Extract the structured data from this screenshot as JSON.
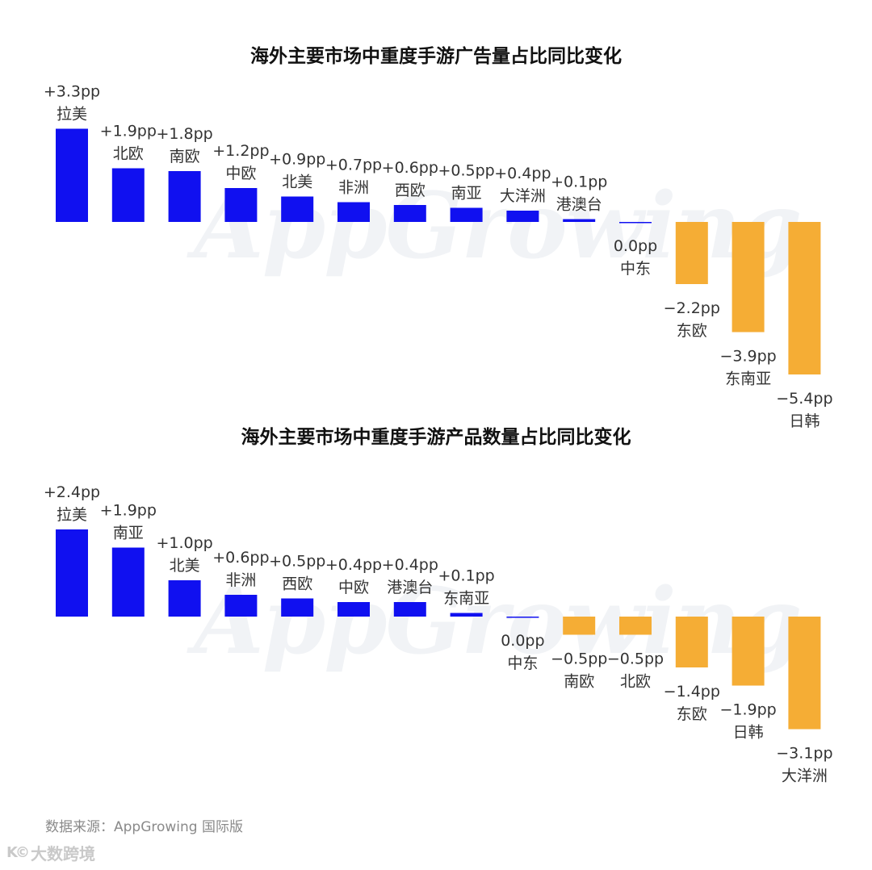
{
  "watermark": "AppGrowing",
  "source": "数据来源：AppGrowing 国际版",
  "brand": {
    "logo": "K©",
    "name": "大数跨境"
  },
  "colors": {
    "positive": "#1010f0",
    "negative": "#f5ad35",
    "zero": "#1010f0"
  },
  "chart_data": [
    {
      "type": "bar",
      "title": "海外主要市场中重度手游广告量占比同比变化",
      "unit": "pp",
      "categories": [
        "拉美",
        "北欧",
        "南欧",
        "中欧",
        "北美",
        "非洲",
        "西欧",
        "南亚",
        "大洋洲",
        "港澳台",
        "中东",
        "东欧",
        "东南亚",
        "日韩"
      ],
      "values": [
        3.3,
        1.9,
        1.8,
        1.2,
        0.9,
        0.7,
        0.6,
        0.5,
        0.4,
        0.1,
        0.0,
        -2.2,
        -3.9,
        -5.4
      ],
      "value_labels": [
        "+3.3pp",
        "+1.9pp",
        "+1.8pp",
        "+1.2pp",
        "+0.9pp",
        "+0.7pp",
        "+0.6pp",
        "+0.5pp",
        "+0.4pp",
        "+0.1pp",
        "0.0pp",
        "−2.2pp",
        "−3.9pp",
        "−5.4pp"
      ]
    },
    {
      "type": "bar",
      "title": "海外主要市场中重度手游产品数量占比同比变化",
      "unit": "pp",
      "categories": [
        "拉美",
        "南亚",
        "北美",
        "非洲",
        "西欧",
        "中欧",
        "港澳台",
        "东南亚",
        "中东",
        "南欧",
        "北欧",
        "东欧",
        "日韩",
        "大洋洲"
      ],
      "values": [
        2.4,
        1.9,
        1.0,
        0.6,
        0.5,
        0.4,
        0.4,
        0.1,
        0.0,
        -0.5,
        -0.5,
        -1.4,
        -1.9,
        -3.1
      ],
      "value_labels": [
        "+2.4pp",
        "+1.9pp",
        "+1.0pp",
        "+0.6pp",
        "+0.5pp",
        "+0.4pp",
        "+0.4pp",
        "+0.1pp",
        "0.0pp",
        "−0.5pp",
        "−0.5pp",
        "−1.4pp",
        "−1.9pp",
        "−3.1pp"
      ]
    }
  ]
}
